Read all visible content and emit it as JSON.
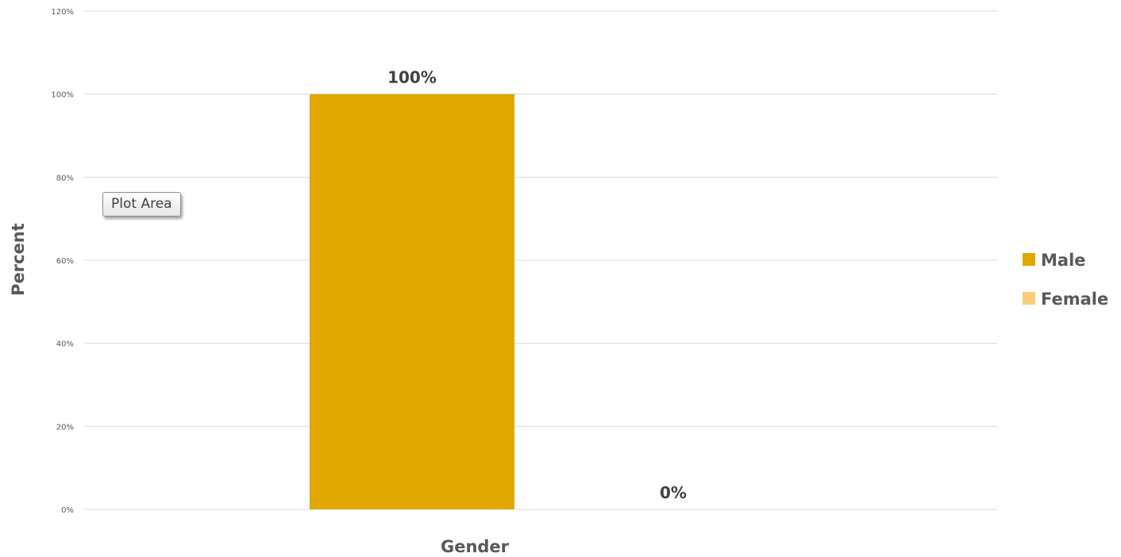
{
  "chart_data": {
    "type": "bar",
    "categories": [
      ""
    ],
    "series": [
      {
        "name": "Male",
        "values": [
          100
        ],
        "color": "#E0A800",
        "data_label": "100%"
      },
      {
        "name": "Female",
        "values": [
          0
        ],
        "color": "#F8CC7A",
        "data_label": "0%"
      }
    ],
    "title": "",
    "xlabel": "Gender",
    "ylabel": "Percent",
    "ylim": [
      0,
      120
    ],
    "y_ticks": [
      "0%",
      "20%",
      "40%",
      "60%",
      "80%",
      "100%",
      "120%"
    ],
    "grid": true,
    "legend_position": "right"
  },
  "tooltip": {
    "text": "Plot Area"
  }
}
